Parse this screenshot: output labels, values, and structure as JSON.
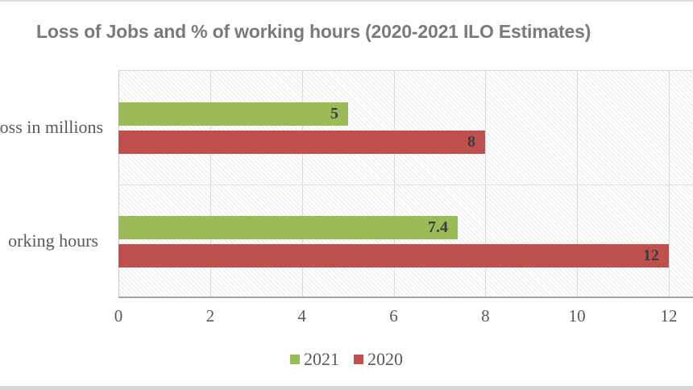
{
  "chart_data": {
    "type": "bar",
    "orientation": "horizontal",
    "title": "Loss of Jobs and % of working hours (2020-2021 ILO Estimates)",
    "categories": [
      "oss in millions",
      "orking hours"
    ],
    "series": [
      {
        "name": "2021",
        "color": "#9bbb59",
        "values": [
          5,
          7.4
        ]
      },
      {
        "name": "2020",
        "color": "#c0504d",
        "values": [
          8,
          12
        ]
      }
    ],
    "x_ticks": [
      0,
      2,
      4,
      6,
      8,
      10,
      12
    ],
    "xlim": [
      0,
      12
    ],
    "grid": true,
    "legend_position": "bottom",
    "legend_labels": [
      "2021",
      "2020"
    ],
    "colors": {
      "title_text": "#7a7a7a",
      "axis_text": "#595959",
      "value_label_text": "#3d3d3d",
      "gridline": "#d9d9d9",
      "category_separator": "#e0e0e0",
      "axis_line": "#a6a6a6",
      "series_2021": "#9bbb59",
      "series_2020": "#c0504d",
      "edge_strip": "#d9d9d9"
    }
  }
}
